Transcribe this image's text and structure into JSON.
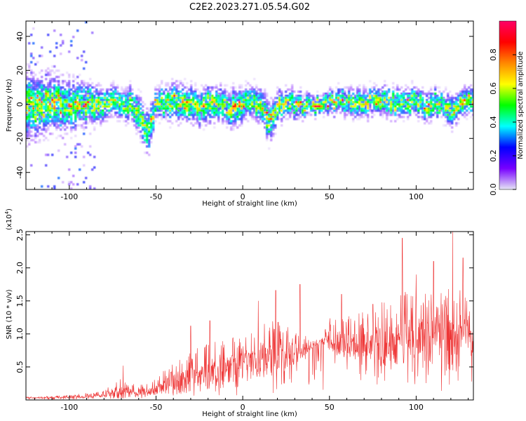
{
  "title": "C2E2.2023.271.05.54.G02",
  "chart_data": [
    {
      "type": "heatmap",
      "xlabel": "Height of straight line (km)",
      "ylabel": "Frequency (Hz)",
      "xlim": [
        -125,
        133
      ],
      "ylim": [
        -50,
        49
      ],
      "x_ticks": [
        -100,
        -50,
        0,
        50,
        100
      ],
      "y_ticks": [
        -40,
        -20,
        0,
        20,
        40
      ],
      "grid": false,
      "colorbar": {
        "label": "Normalized spectral amplitude",
        "range": [
          0,
          1
        ],
        "ticks": [
          0.0,
          0.2,
          0.4,
          0.6,
          0.8
        ],
        "colormap": [
          "#e6e6f5",
          "#7700ff",
          "#0000ff",
          "#00ffff",
          "#00ff00",
          "#ffff00",
          "#ff8800",
          "#ff0000",
          "#ff0066"
        ]
      },
      "ridge_profile": {
        "x": [
          -125,
          -110,
          -100,
          -90,
          -80,
          -70,
          -65,
          -60,
          -57,
          -55,
          -52,
          -50,
          -45,
          -40,
          -35,
          -30,
          -25,
          -20,
          -15,
          -10,
          -5,
          0,
          5,
          10,
          15,
          17,
          20,
          25,
          30,
          35,
          40,
          42,
          45,
          50,
          55,
          60,
          65,
          70,
          75,
          80,
          85,
          90,
          95,
          100,
          105,
          110,
          115,
          120,
          125,
          133
        ],
        "center": [
          -2,
          0,
          -1,
          0,
          1,
          2,
          0,
          -6,
          -12,
          -18,
          -8,
          0,
          1,
          2,
          0,
          1,
          -2,
          2,
          0,
          -1,
          -3,
          0,
          1,
          0,
          -10,
          -6,
          -1,
          1,
          0,
          -1,
          0,
          -1,
          -1,
          0,
          2,
          1,
          0,
          0,
          3,
          2,
          1,
          0,
          2,
          1,
          0,
          1,
          0,
          -6,
          0,
          4
        ],
        "spread": [
          14,
          12,
          10,
          9,
          7,
          6,
          7,
          8,
          9,
          9,
          8,
          6,
          7,
          8,
          8,
          8,
          7,
          8,
          7,
          7,
          8,
          7,
          7,
          7,
          9,
          8,
          7,
          6,
          6,
          5,
          4,
          4,
          4,
          5,
          5,
          6,
          6,
          6,
          6,
          6,
          6,
          6,
          6,
          6,
          6,
          6,
          6,
          7,
          6,
          6
        ]
      },
      "peak": {
        "x": 43,
        "y": -1,
        "amplitude": 1.0
      }
    },
    {
      "type": "line",
      "xlabel": "Height of straight line (km)",
      "ylabel": "SNR (10 * v/v)",
      "scale_label": "(x10",
      "scale_exp": "4",
      "scale_close": ")",
      "xlim": [
        -125,
        133
      ],
      "ylim": [
        0,
        2.55
      ],
      "x_ticks": [
        -100,
        -50,
        0,
        50,
        100
      ],
      "y_ticks": [
        0.5,
        1.0,
        1.5,
        2.0,
        2.5
      ],
      "grid": false,
      "series": [
        {
          "color": "#ee3333",
          "baseline": {
            "x": [
              -125,
              -100,
              -80,
              -70,
              -60,
              -50,
              -40,
              -30,
              -20,
              -10,
              0,
              10,
              20,
              30,
              40,
              45,
              50,
              60,
              70,
              80,
              90,
              100,
              110,
              120,
              133
            ],
            "y": [
              0.03,
              0.04,
              0.07,
              0.1,
              0.11,
              0.14,
              0.22,
              0.3,
              0.35,
              0.42,
              0.5,
              0.55,
              0.62,
              0.7,
              0.82,
              0.88,
              0.85,
              0.8,
              0.82,
              0.85,
              0.85,
              0.85,
              0.85,
              0.85,
              0.9
            ]
          },
          "envelope": {
            "x": [
              -125,
              -100,
              -80,
              -70,
              -60,
              -50,
              -40,
              -30,
              -20,
              -10,
              0,
              10,
              20,
              30,
              40,
              45,
              50,
              60,
              70,
              80,
              90,
              100,
              110,
              120,
              133
            ],
            "y": [
              0.06,
              0.1,
              0.2,
              0.5,
              0.3,
              0.45,
              0.85,
              1.1,
              1.2,
              1.35,
              1.25,
              1.5,
              1.7,
              1.4,
              1.0,
              0.95,
              1.5,
              1.6,
              1.7,
              1.9,
              2.1,
              2.45,
              2.2,
              2.55,
              1.7
            ]
          },
          "spikes": [
            {
              "x": -69,
              "y": 0.52
            },
            {
              "x": -30,
              "y": 1.12
            },
            {
              "x": -19,
              "y": 1.2
            },
            {
              "x": 9,
              "y": 1.5
            },
            {
              "x": 19,
              "y": 1.66
            },
            {
              "x": 33,
              "y": 1.75
            },
            {
              "x": 57,
              "y": 1.6
            },
            {
              "x": 75,
              "y": 1.45
            },
            {
              "x": 92,
              "y": 2.45
            },
            {
              "x": 100,
              "y": 1.9
            },
            {
              "x": 110,
              "y": 2.1
            },
            {
              "x": 121,
              "y": 2.55
            },
            {
              "x": 127,
              "y": 2.15
            }
          ]
        }
      ]
    }
  ]
}
